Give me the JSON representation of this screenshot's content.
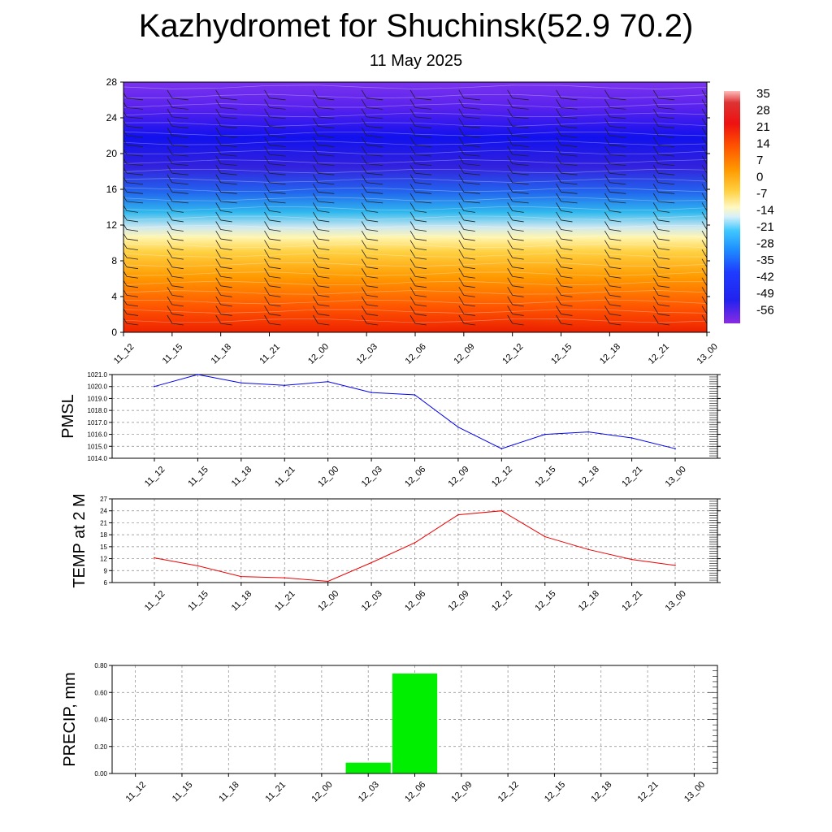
{
  "title": "Kazhydromet for Shuchinsk(52.9 70.2)",
  "subtitle": "11 May 2025",
  "chart_data": [
    {
      "type": "heatmap",
      "description_label": "cross-section",
      "x": [
        "11_12",
        "11_15",
        "11_18",
        "11_21",
        "12_00",
        "12_03",
        "12_06",
        "12_09",
        "12_12",
        "12_15",
        "12_18",
        "12_21",
        "13_00"
      ],
      "yticks": [
        0,
        4,
        8,
        12,
        16,
        20,
        24,
        28
      ],
      "ylim": [
        0,
        28
      ],
      "colorbar": {
        "labels": [
          "35",
          "28",
          "21",
          "14",
          "7",
          "0",
          "-7",
          "-14",
          "-21",
          "-28",
          "-35",
          "-42",
          "-49",
          "-56"
        ],
        "range": [
          -63,
          38
        ]
      },
      "surface_temp": [
        12,
        10,
        7,
        7,
        6,
        11,
        16,
        23,
        24,
        17,
        14,
        12,
        10
      ]
    },
    {
      "type": "line",
      "ylabel": "PMSL",
      "x": [
        "11_12",
        "11_15",
        "11_18",
        "11_21",
        "12_00",
        "12_03",
        "12_06",
        "12_09",
        "12_12",
        "12_15",
        "12_18",
        "12_21",
        "13_00"
      ],
      "values": [
        1020.0,
        1021.0,
        1020.3,
        1020.1,
        1020.4,
        1019.5,
        1019.3,
        1016.6,
        1014.8,
        1016.0,
        1016.2,
        1015.7,
        1014.8
      ],
      "yticks": [
        "1014.0",
        "1015.0",
        "1016.0",
        "1017.0",
        "1018.0",
        "1019.0",
        "1020.0",
        "1021.0"
      ],
      "ylim": [
        1014,
        1021
      ],
      "color": "#0000ee",
      "grid": true
    },
    {
      "type": "line",
      "ylabel": "TEMP at 2 M",
      "x": [
        "11_12",
        "11_15",
        "11_18",
        "11_21",
        "12_00",
        "12_03",
        "12_06",
        "12_09",
        "12_12",
        "12_15",
        "12_18",
        "12_21",
        "13_00"
      ],
      "values": [
        12.2,
        10.2,
        7.5,
        7.2,
        6.3,
        11.0,
        16.0,
        23.0,
        24.0,
        17.5,
        14.3,
        11.8,
        10.3
      ],
      "yticks": [
        "6",
        "9",
        "12",
        "15",
        "18",
        "21",
        "24",
        "27"
      ],
      "ylim": [
        6,
        27
      ],
      "color": "#ee0000",
      "grid": true
    },
    {
      "type": "bar",
      "ylabel": "PRECIP, mm",
      "x": [
        "11_12",
        "11_15",
        "11_18",
        "11_21",
        "12_00",
        "12_03",
        "12_06",
        "12_09",
        "12_12",
        "12_15",
        "12_18",
        "12_21",
        "13_00"
      ],
      "values": [
        0,
        0,
        0,
        0,
        0,
        0.08,
        0.74,
        0,
        0,
        0,
        0,
        0,
        0
      ],
      "yticks": [
        "0.00",
        "0.20",
        "0.40",
        "0.60",
        "0.80"
      ],
      "ylim": [
        0,
        0.8
      ],
      "color": "#00ee00",
      "grid": true
    }
  ]
}
